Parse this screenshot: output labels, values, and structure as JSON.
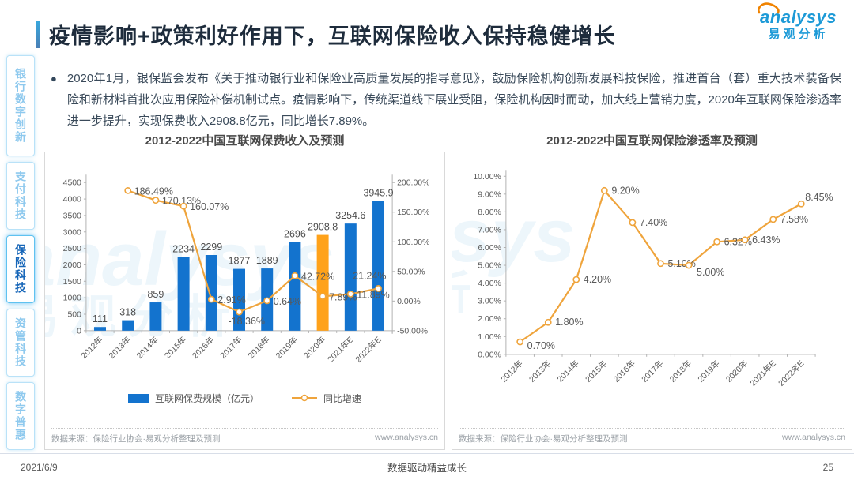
{
  "header": {
    "title": "疫情影响+政策利好作用下，互联网保险收入保持稳健增长",
    "logo": {
      "brand": "analysys",
      "brand_cn": "易观分析"
    }
  },
  "sidebar": {
    "items": [
      {
        "label": "银行数字创新",
        "active": false
      },
      {
        "label": "支付科技",
        "active": false
      },
      {
        "label": "保险科技",
        "active": true
      },
      {
        "label": "资管科技",
        "active": false
      },
      {
        "label": "数字普惠",
        "active": false
      }
    ]
  },
  "intro": {
    "bullet": "●",
    "text": "2020年1月，银保监会发布《关于推动银行业和保险业高质量发展的指导意见》，鼓励保险机构创新发展科技保险，推进首台（套）重大技术装备保险和新材料首批次应用保险补偿机制试点。疫情影响下，传统渠道线下展业受阻，保险机构因时而动，加大线上营销力度，2020年互联网保险渗透率进一步提升，实现保费收入2908.8亿元，同比增长7.89%。"
  },
  "watermark": {
    "en": "analysys",
    "cn": "易观分析"
  },
  "colors": {
    "bar_blue": "#1373ce",
    "bar_highlight": "#ffa21a",
    "line_orange": "#efa43c",
    "axis_gray": "#b3b3b3",
    "label_gray": "#595959",
    "value_label": "#4d4d4d",
    "logo_blue": "#1d9ad7",
    "logo_orange": "#f08300"
  },
  "chart_data": [
    {
      "type": "bar",
      "subtype": "combo-bar-line-dual-axis",
      "title": "2012-2022中国互联网保费收入及预测",
      "categories": [
        "2012年",
        "2013年",
        "2014年",
        "2015年",
        "2016年",
        "2017年",
        "2018年",
        "2019年",
        "2020年",
        "2021年E",
        "2022年E"
      ],
      "series": [
        {
          "name": "互联网保费规模（亿元）",
          "type": "bar",
          "axis": "left",
          "values": [
            111,
            318,
            859,
            2234,
            2299,
            1877,
            1889,
            2696,
            2908.8,
            3254.6,
            3945.9
          ],
          "highlight_index": 8
        },
        {
          "name": "同比增速",
          "type": "line",
          "axis": "right",
          "unit": "%",
          "values": [
            null,
            186.49,
            170.13,
            160.07,
            2.91,
            -18.36,
            0.64,
            42.72,
            7.89,
            11.89,
            21.24
          ]
        }
      ],
      "left_axis": {
        "min": 0,
        "max": 4500,
        "step": 500
      },
      "right_axis": {
        "min": -50,
        "max": 200,
        "step": 50,
        "unit": "%"
      },
      "grid": false,
      "legend_position": "bottom",
      "source": "数据来源：保险行业协会·易观分析整理及预测",
      "source_url": "www.analysys.cn"
    },
    {
      "type": "line",
      "title": "2012-2022中国互联网保险渗透率及预测",
      "categories": [
        "2012年",
        "2013年",
        "2014年",
        "2015年",
        "2016年",
        "2017年",
        "2018年",
        "2019年",
        "2020年",
        "2021年E",
        "2022年E"
      ],
      "values": [
        0.7,
        1.8,
        4.2,
        9.2,
        7.4,
        5.1,
        5.0,
        6.32,
        6.43,
        7.58,
        8.45
      ],
      "unit": "%",
      "y_axis": {
        "min": 0,
        "max": 10,
        "step": 1,
        "unit": "%"
      },
      "grid": false,
      "source": "数据来源：保险行业协会·易观分析整理及预测",
      "source_url": "www.analysys.cn"
    }
  ],
  "footer": {
    "date": "2021/6/9",
    "slogan": "数据驱动精益成长",
    "page": "25"
  }
}
